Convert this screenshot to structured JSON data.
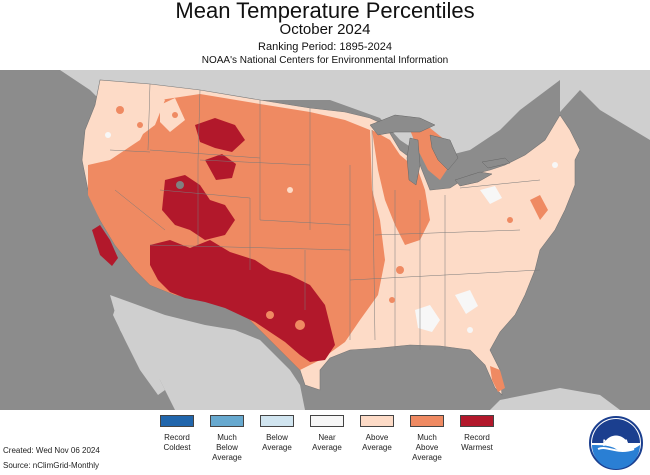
{
  "header": {
    "title": "Mean Temperature Percentiles",
    "subtitle": "October 2024",
    "ranking_period": "Ranking Period: 1895-2024",
    "source_org": "NOAA's National Centers for Environmental Information"
  },
  "colors": {
    "ocean": "#8c8c8c",
    "land_outside": "#cfcfcf",
    "great_lakes": "#8c8c8c",
    "record_coldest": "#2166ac",
    "much_below": "#67a9cf",
    "below": "#d1e5f0",
    "near": "#f7f7f7",
    "above": "#fddbc7",
    "much_above": "#ef8a62",
    "record_warmest": "#b2182b"
  },
  "legend": {
    "items": [
      {
        "label": "Record\nColdest",
        "color": "#2166ac"
      },
      {
        "label": "Much\nBelow\nAverage",
        "color": "#67a9cf"
      },
      {
        "label": "Below\nAverage",
        "color": "#d1e5f0"
      },
      {
        "label": "Near\nAverage",
        "color": "#f7f7f7"
      },
      {
        "label": "Above\nAverage",
        "color": "#fddbc7"
      },
      {
        "label": "Much\nAbove\nAverage",
        "color": "#ef8a62"
      },
      {
        "label": "Record\nWarmest",
        "color": "#b2182b"
      }
    ]
  },
  "footer": {
    "created": "Created: Wed Nov 06 2024",
    "source": "Source: nClimGrid-Monthly"
  },
  "logo": {
    "text": "NOAA",
    "icon": "noaa-logo-icon"
  }
}
